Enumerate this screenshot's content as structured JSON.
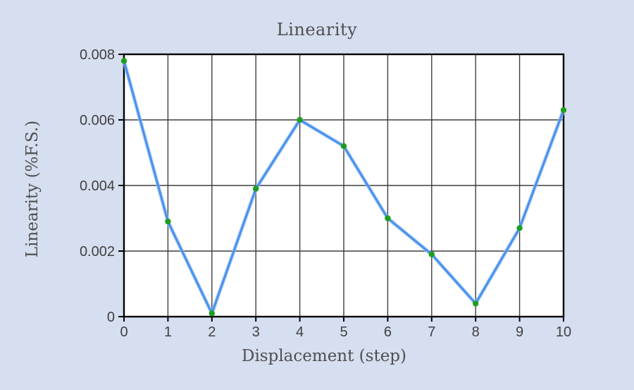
{
  "chart_data": {
    "type": "line",
    "title": "Linearity",
    "xlabel": "Displacement (step)",
    "ylabel": "Linearity (%F.S.)",
    "x": [
      0,
      1,
      2,
      3,
      4,
      5,
      6,
      7,
      8,
      9,
      10
    ],
    "series": [
      {
        "name": "Linearity",
        "values": [
          0.0078,
          0.0029,
          0.0001,
          0.0039,
          0.006,
          0.0052,
          0.003,
          0.0019,
          0.0004,
          0.0027,
          0.0063
        ]
      }
    ],
    "xlim": [
      0,
      10
    ],
    "ylim": [
      0,
      0.008
    ],
    "xticks": [
      0,
      1,
      2,
      3,
      4,
      5,
      6,
      7,
      8,
      9,
      10
    ],
    "xtick_labels": [
      "0",
      "1",
      "2",
      "3",
      "4",
      "5",
      "6",
      "7",
      "8",
      "9",
      "10"
    ],
    "yticks": [
      0,
      0.002,
      0.004,
      0.006,
      0.008
    ],
    "ytick_labels": [
      "0",
      "0.002",
      "0.004",
      "0.006",
      "0.008"
    ],
    "grid": true,
    "legend": "none",
    "colors": {
      "page_bg": "#d6dff0",
      "plot_bg": "#ffffff",
      "grid": "#3d3d3d",
      "axis": "#000000",
      "line": "#4b93ee",
      "line_glow": "#aac9f2",
      "marker": "#1e9e1e",
      "title_text": "#4f4f4f",
      "tick_text": "#404040"
    }
  }
}
